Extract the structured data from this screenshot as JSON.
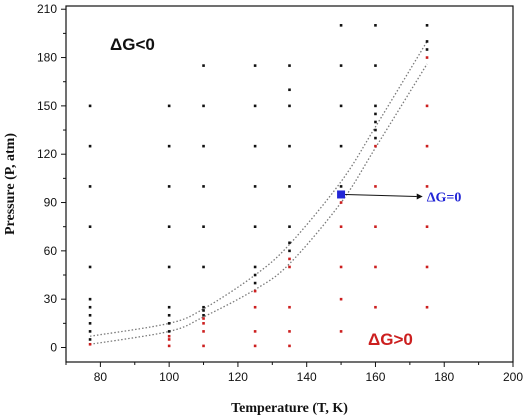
{
  "chart_data": {
    "type": "scatter",
    "xlabel": "Temperature (T, K)",
    "ylabel": "Pressure (P, atm)",
    "xlim": [
      70,
      200
    ],
    "ylim": [
      -9,
      212
    ],
    "x_ticks": [
      80,
      100,
      120,
      140,
      160,
      180,
      200
    ],
    "y_ticks": [
      0,
      30,
      60,
      90,
      120,
      150,
      180,
      210
    ],
    "grid": false,
    "colors": {
      "black": "#111111",
      "red": "#cc1f1f",
      "blue": "#2226d6",
      "curve": "#7a7a7a"
    },
    "annotations": {
      "negative": "ΔG<0",
      "positive": "ΔG>0",
      "equilibrium": "ΔG=0",
      "equilibrium_point": [
        150,
        95
      ],
      "arrow_end": [
        172,
        95
      ]
    },
    "series": [
      {
        "color": "black",
        "points": [
          [
            77,
            150
          ],
          [
            77,
            125
          ],
          [
            77,
            100
          ],
          [
            77,
            75
          ],
          [
            77,
            50
          ],
          [
            77,
            30
          ],
          [
            77,
            25
          ],
          [
            77,
            20
          ],
          [
            77,
            15
          ],
          [
            77,
            10
          ],
          [
            77,
            5
          ],
          [
            100,
            150
          ],
          [
            100,
            125
          ],
          [
            100,
            100
          ],
          [
            100,
            75
          ],
          [
            100,
            50
          ],
          [
            100,
            25
          ],
          [
            100,
            20
          ],
          [
            100,
            15
          ],
          [
            100,
            10
          ],
          [
            110,
            175
          ],
          [
            110,
            150
          ],
          [
            110,
            125
          ],
          [
            110,
            100
          ],
          [
            110,
            75
          ],
          [
            110,
            50
          ],
          [
            110,
            25
          ],
          [
            110,
            23
          ],
          [
            110,
            20
          ],
          [
            125,
            175
          ],
          [
            125,
            150
          ],
          [
            125,
            125
          ],
          [
            125,
            100
          ],
          [
            125,
            75
          ],
          [
            125,
            50
          ],
          [
            125,
            45
          ],
          [
            125,
            40
          ],
          [
            135,
            175
          ],
          [
            135,
            160
          ],
          [
            135,
            150
          ],
          [
            135,
            125
          ],
          [
            135,
            100
          ],
          [
            135,
            75
          ],
          [
            135,
            65
          ],
          [
            135,
            60
          ],
          [
            150,
            200
          ],
          [
            150,
            175
          ],
          [
            150,
            150
          ],
          [
            150,
            125
          ],
          [
            150,
            100
          ],
          [
            160,
            200
          ],
          [
            160,
            175
          ],
          [
            160,
            150
          ],
          [
            160,
            145
          ],
          [
            160,
            140
          ],
          [
            160,
            135
          ],
          [
            160,
            130
          ],
          [
            175,
            200
          ],
          [
            175,
            190
          ],
          [
            175,
            185
          ]
        ]
      },
      {
        "color": "red",
        "points": [
          [
            77,
            2
          ],
          [
            100,
            7
          ],
          [
            100,
            5
          ],
          [
            100,
            1
          ],
          [
            110,
            18
          ],
          [
            110,
            15
          ],
          [
            110,
            10
          ],
          [
            110,
            1
          ],
          [
            125,
            35
          ],
          [
            125,
            25
          ],
          [
            125,
            10
          ],
          [
            125,
            1
          ],
          [
            135,
            55
          ],
          [
            135,
            50
          ],
          [
            135,
            25
          ],
          [
            135,
            10
          ],
          [
            135,
            1
          ],
          [
            150,
            90
          ],
          [
            150,
            75
          ],
          [
            150,
            50
          ],
          [
            150,
            30
          ],
          [
            150,
            10
          ],
          [
            160,
            125
          ],
          [
            160,
            100
          ],
          [
            160,
            75
          ],
          [
            160,
            50
          ],
          [
            160,
            25
          ],
          [
            175,
            180
          ],
          [
            175,
            150
          ],
          [
            175,
            125
          ],
          [
            175,
            100
          ],
          [
            175,
            75
          ],
          [
            175,
            50
          ],
          [
            175,
            25
          ]
        ]
      }
    ],
    "curves": [
      {
        "color": "curve",
        "points": [
          [
            77,
            7
          ],
          [
            100,
            15
          ],
          [
            110,
            24
          ],
          [
            125,
            45
          ],
          [
            135,
            64
          ],
          [
            150,
            103
          ],
          [
            160,
            137
          ],
          [
            175,
            190
          ]
        ]
      },
      {
        "color": "curve",
        "points": [
          [
            77,
            2
          ],
          [
            100,
            10
          ],
          [
            110,
            19
          ],
          [
            125,
            36
          ],
          [
            135,
            52
          ],
          [
            150,
            90
          ],
          [
            160,
            124
          ],
          [
            175,
            176
          ]
        ]
      }
    ]
  }
}
